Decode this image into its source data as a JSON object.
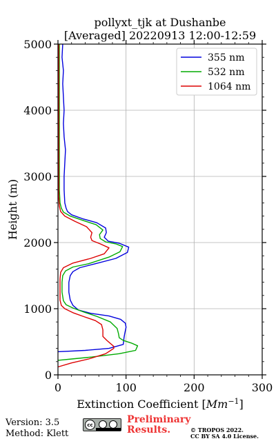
{
  "chart_data": {
    "type": "line",
    "title": "pollyxt_tjk at Dushanbe",
    "subtitle": "[Averaged] 20220913 12:00-12:59",
    "xlabel": "Extinction Coefficient [Mm⁻¹]",
    "xlabel_unit_base": "Mm",
    "xlabel_unit_exp": "−1",
    "ylabel": "Height (m)",
    "xlim": [
      0,
      300
    ],
    "ylim": [
      0,
      5000
    ],
    "xticks": [
      0,
      100,
      200,
      300
    ],
    "yticks": [
      0,
      1000,
      2000,
      3000,
      4000,
      5000
    ],
    "grid": true,
    "legend_position": "top-right",
    "series": [
      {
        "name": "355 nm",
        "color": "#0000dd",
        "points": [
          [
            0,
            350
          ],
          [
            40,
            370
          ],
          [
            75,
            400
          ],
          [
            96,
            460
          ],
          [
            97,
            560
          ],
          [
            98,
            620
          ],
          [
            100,
            720
          ],
          [
            99,
            780
          ],
          [
            92,
            840
          ],
          [
            75,
            890
          ],
          [
            48,
            930
          ],
          [
            30,
            980
          ],
          [
            22,
            1050
          ],
          [
            18,
            1130
          ],
          [
            16,
            1250
          ],
          [
            16,
            1400
          ],
          [
            18,
            1500
          ],
          [
            22,
            1560
          ],
          [
            32,
            1620
          ],
          [
            55,
            1680
          ],
          [
            85,
            1760
          ],
          [
            102,
            1850
          ],
          [
            104,
            1930
          ],
          [
            90,
            1990
          ],
          [
            74,
            2020
          ],
          [
            68,
            2080
          ],
          [
            71,
            2150
          ],
          [
            70,
            2220
          ],
          [
            57,
            2300
          ],
          [
            36,
            2360
          ],
          [
            20,
            2420
          ],
          [
            14,
            2470
          ],
          [
            12,
            2520
          ],
          [
            10,
            2600
          ],
          [
            9,
            2800
          ],
          [
            9,
            3000
          ],
          [
            10,
            3200
          ],
          [
            11,
            3400
          ],
          [
            9,
            3600
          ],
          [
            8,
            3800
          ],
          [
            9,
            4000
          ],
          [
            8,
            4200
          ],
          [
            7,
            4400
          ],
          [
            8,
            4600
          ],
          [
            6,
            4800
          ],
          [
            7,
            5000
          ]
        ]
      },
      {
        "name": "532 nm",
        "color": "#00aa00",
        "points": [
          [
            0,
            220
          ],
          [
            20,
            240
          ],
          [
            50,
            270
          ],
          [
            90,
            320
          ],
          [
            114,
            370
          ],
          [
            117,
            440
          ],
          [
            108,
            480
          ],
          [
            96,
            520
          ],
          [
            90,
            560
          ],
          [
            89,
            620
          ],
          [
            87,
            700
          ],
          [
            77,
            800
          ],
          [
            58,
            880
          ],
          [
            38,
            950
          ],
          [
            22,
            1010
          ],
          [
            12,
            1060
          ],
          [
            8,
            1120
          ],
          [
            6,
            1250
          ],
          [
            6,
            1400
          ],
          [
            7,
            1500
          ],
          [
            11,
            1570
          ],
          [
            22,
            1630
          ],
          [
            45,
            1680
          ],
          [
            75,
            1780
          ],
          [
            91,
            1860
          ],
          [
            95,
            1940
          ],
          [
            85,
            1980
          ],
          [
            70,
            2010
          ],
          [
            62,
            2060
          ],
          [
            61,
            2120
          ],
          [
            66,
            2190
          ],
          [
            56,
            2270
          ],
          [
            38,
            2330
          ],
          [
            18,
            2400
          ],
          [
            8,
            2460
          ],
          [
            5,
            2520
          ],
          [
            3,
            2600
          ],
          [
            2,
            2800
          ],
          [
            2,
            3000
          ],
          [
            2,
            3400
          ],
          [
            2,
            3800
          ],
          [
            2,
            4200
          ],
          [
            2,
            4600
          ],
          [
            2,
            5000
          ]
        ]
      },
      {
        "name": "1064 nm",
        "color": "#dd0000",
        "points": [
          [
            0,
            120
          ],
          [
            20,
            180
          ],
          [
            45,
            240
          ],
          [
            70,
            320
          ],
          [
            82,
            400
          ],
          [
            82,
            430
          ],
          [
            72,
            520
          ],
          [
            66,
            580
          ],
          [
            66,
            680
          ],
          [
            64,
            760
          ],
          [
            55,
            820
          ],
          [
            38,
            880
          ],
          [
            22,
            940
          ],
          [
            10,
            1000
          ],
          [
            5,
            1050
          ],
          [
            3,
            1130
          ],
          [
            3,
            1300
          ],
          [
            3,
            1450
          ],
          [
            4,
            1550
          ],
          [
            8,
            1620
          ],
          [
            22,
            1690
          ],
          [
            48,
            1760
          ],
          [
            68,
            1830
          ],
          [
            75,
            1920
          ],
          [
            62,
            1980
          ],
          [
            50,
            2030
          ],
          [
            48,
            2080
          ],
          [
            50,
            2150
          ],
          [
            42,
            2240
          ],
          [
            25,
            2320
          ],
          [
            10,
            2400
          ],
          [
            4,
            2470
          ],
          [
            2,
            2550
          ],
          [
            1,
            2700
          ],
          [
            1,
            3000
          ],
          [
            1,
            3500
          ],
          [
            1,
            4000
          ],
          [
            1,
            4500
          ],
          [
            1,
            5000
          ]
        ]
      }
    ]
  },
  "footer": {
    "version": "Version: 3.5",
    "method": "Method: Klett",
    "preliminary_line1": "Preliminary",
    "preliminary_line2": "Results.",
    "copyright_line1": "© TROPOS 2022.",
    "copyright_line2": "CC BY SA 4.0 License.",
    "license_badge": {
      "icon": "cc-by-sa-icon",
      "text_cc": "cc",
      "text_by": "BY",
      "text_sa": "SA"
    }
  }
}
